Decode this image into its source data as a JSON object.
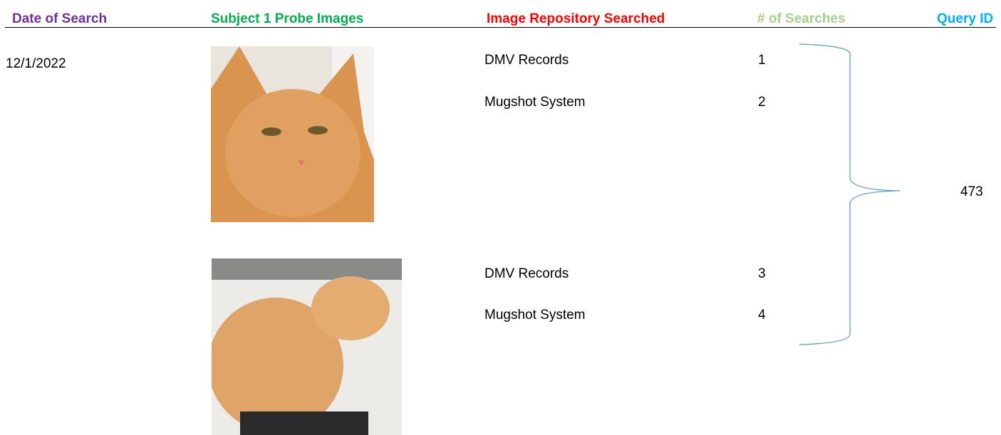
{
  "header": {
    "columns": [
      "Date of Search",
      "Subject 1 Probe Images",
      "Image Repository Searched",
      "# of Searches",
      "Query ID"
    ]
  },
  "date": "12/1/2022",
  "probes": [
    {
      "searches": [
        {
          "repository": "DMV Records",
          "count": 1
        },
        {
          "repository": "Mugshot System",
          "count": 2
        }
      ]
    },
    {
      "searches": [
        {
          "repository": "DMV Records",
          "count": 3
        },
        {
          "repository": "Mugshot System",
          "count": 4
        }
      ]
    }
  ],
  "query_id": 473
}
